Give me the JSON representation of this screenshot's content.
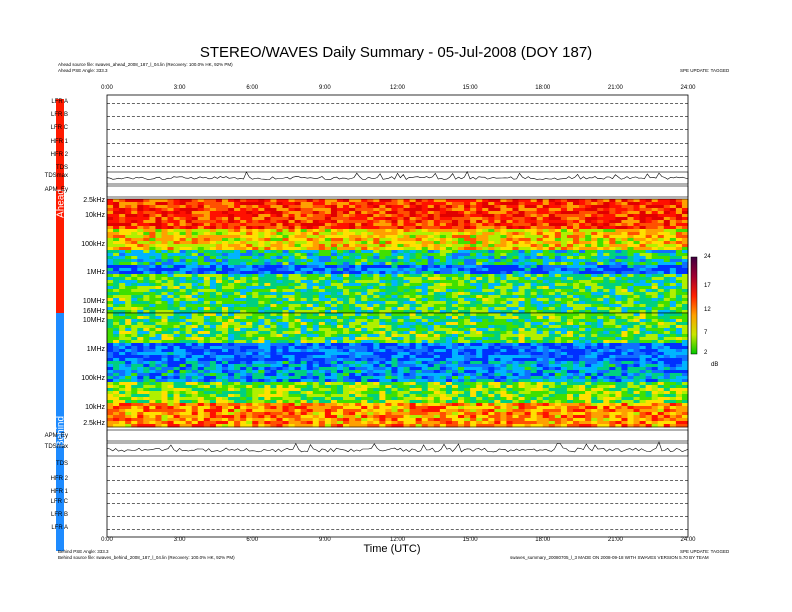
{
  "title": "STEREO/WAVES Daily Summary - 05-Jul-2008 (DOY 187)",
  "ahead_source": "Ahead source file: swaves_ahead_2008_187_l_04.lin (Recovery: 100.0% HK, 92% PM)",
  "ahead_angle": "Ahead PSE Angle: 333.3",
  "behind_angle": "Behind PSE Angle: 333.3",
  "behind_source": "Behind source file: swaves_behind_2008_187_l_04.lin (Recovery: 100.0% HK, 92% PM)",
  "top_right_note": "SPE UPDATE: TAGGED",
  "bottom_right_note": "SPE UPDATE: TAGGED",
  "footer_note": "swaves_summary_20080705_l_3 MADE ON 2008-09-18 WITH SWAVES VERSION 5.70 BY TEAM",
  "ahead_label": "Ahead",
  "behind_label": "Behind",
  "xlabel": "Time (UTC)",
  "colors": {
    "ahead": "#ff1a00",
    "behind": "#1e8bff"
  },
  "top_rows": [
    "LFR A",
    "LFR B",
    "LFR C",
    "HFR 1",
    "HFR 2",
    "TDS",
    "TDSmax",
    "APM_Ey"
  ],
  "bottom_rows": [
    "APM_Ey",
    "TDSmax",
    "TDS",
    "HFR 2",
    "HFR 1",
    "LFR C",
    "LFR B",
    "LFR A"
  ],
  "chart_data": {
    "type": "heatmap",
    "x_ticks": [
      "0:00",
      "3:00",
      "6:00",
      "9:00",
      "12:00",
      "15:00",
      "18:00",
      "21:00",
      "24:00"
    ],
    "xlim": [
      0,
      24
    ],
    "ahead_freq_ticks": [
      "2.5kHz",
      "10kHz",
      "100kHz",
      "1MHz",
      "10MHz",
      "16MHz"
    ],
    "behind_freq_ticks": [
      "10MHz",
      "1MHz",
      "100kHz",
      "10kHz",
      "2.5kHz"
    ],
    "colorbar": {
      "ticks": [
        "24",
        "17",
        "12",
        "7",
        "2"
      ],
      "unit": "dB",
      "range": [
        2,
        24
      ]
    }
  }
}
